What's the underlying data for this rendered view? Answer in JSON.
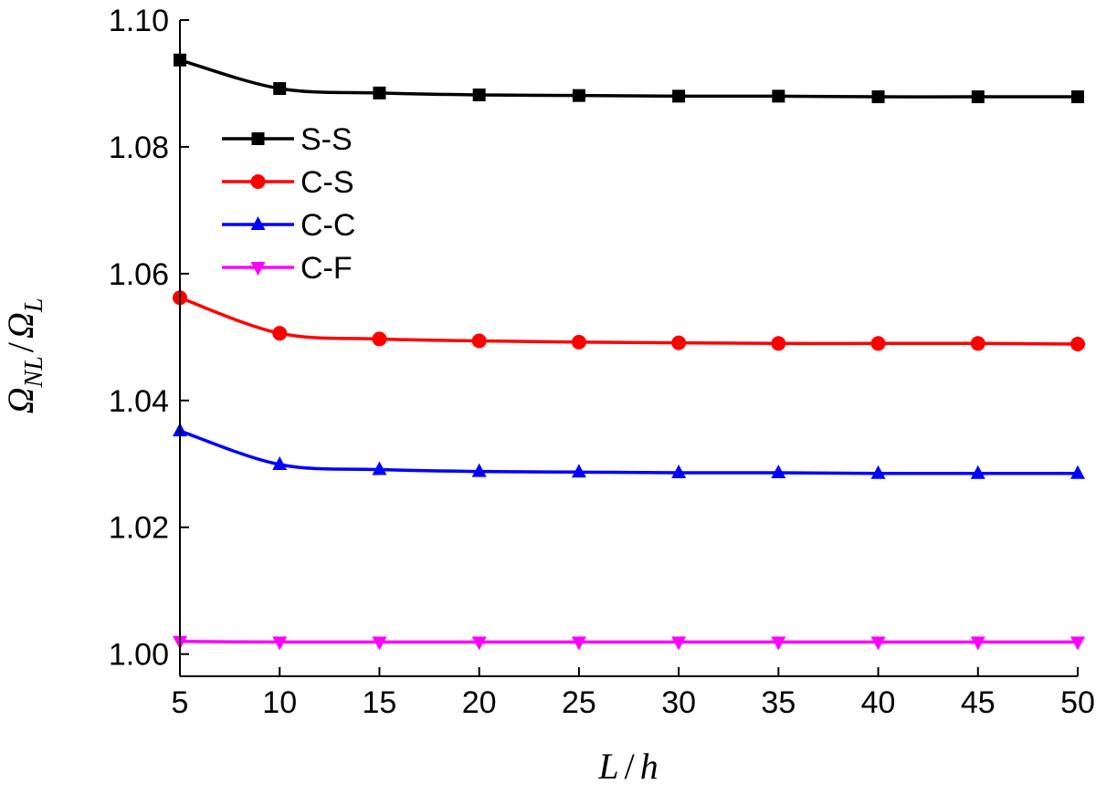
{
  "chart_data": {
    "type": "line",
    "title": "",
    "xlabel": "L/h",
    "ylabel": "Ω_NL/Ω_L",
    "xlabel_parts": {
      "L": "L",
      "slash": "/",
      "h": "h"
    },
    "ylabel_parts": {
      "omega": "Ω",
      "nl": "NL",
      "slash": "/",
      "l": "L"
    },
    "x": [
      5,
      10,
      15,
      20,
      25,
      30,
      35,
      40,
      45,
      50
    ],
    "xticks": [
      5,
      10,
      15,
      20,
      25,
      30,
      35,
      40,
      45,
      50
    ],
    "xtick_labels": [
      "5",
      "10",
      "15",
      "20",
      "25",
      "30",
      "35",
      "40",
      "45",
      "50"
    ],
    "yticks": [
      1.0,
      1.02,
      1.04,
      1.06,
      1.08,
      1.1
    ],
    "ytick_labels": [
      "1.00",
      "1.02",
      "1.04",
      "1.06",
      "1.08",
      "1.10"
    ],
    "xlim": [
      5,
      50
    ],
    "ylim": [
      0.9965,
      1.1
    ],
    "grid": false,
    "legend_position": "upper-left",
    "series": [
      {
        "name": "S-S",
        "color": "#000000",
        "marker": "square",
        "values": [
          1.0937,
          1.0892,
          1.0885,
          1.0882,
          1.0881,
          1.088,
          1.088,
          1.0879,
          1.0879,
          1.0879
        ]
      },
      {
        "name": "C-S",
        "color": "#ff0000",
        "marker": "circle",
        "values": [
          1.0562,
          1.0506,
          1.0497,
          1.0494,
          1.0492,
          1.0491,
          1.049,
          1.049,
          1.049,
          1.0489
        ]
      },
      {
        "name": "C-C",
        "color": "#0000ff",
        "marker": "triangle-up",
        "values": [
          1.0352,
          1.0299,
          1.0291,
          1.0288,
          1.0287,
          1.0286,
          1.0286,
          1.0285,
          1.0285,
          1.0285
        ]
      },
      {
        "name": "C-F",
        "color": "#ff00ff",
        "marker": "triangle-down",
        "values": [
          1.002,
          1.0019,
          1.0019,
          1.0019,
          1.0019,
          1.0019,
          1.0019,
          1.0019,
          1.0019,
          1.0019
        ]
      }
    ]
  }
}
